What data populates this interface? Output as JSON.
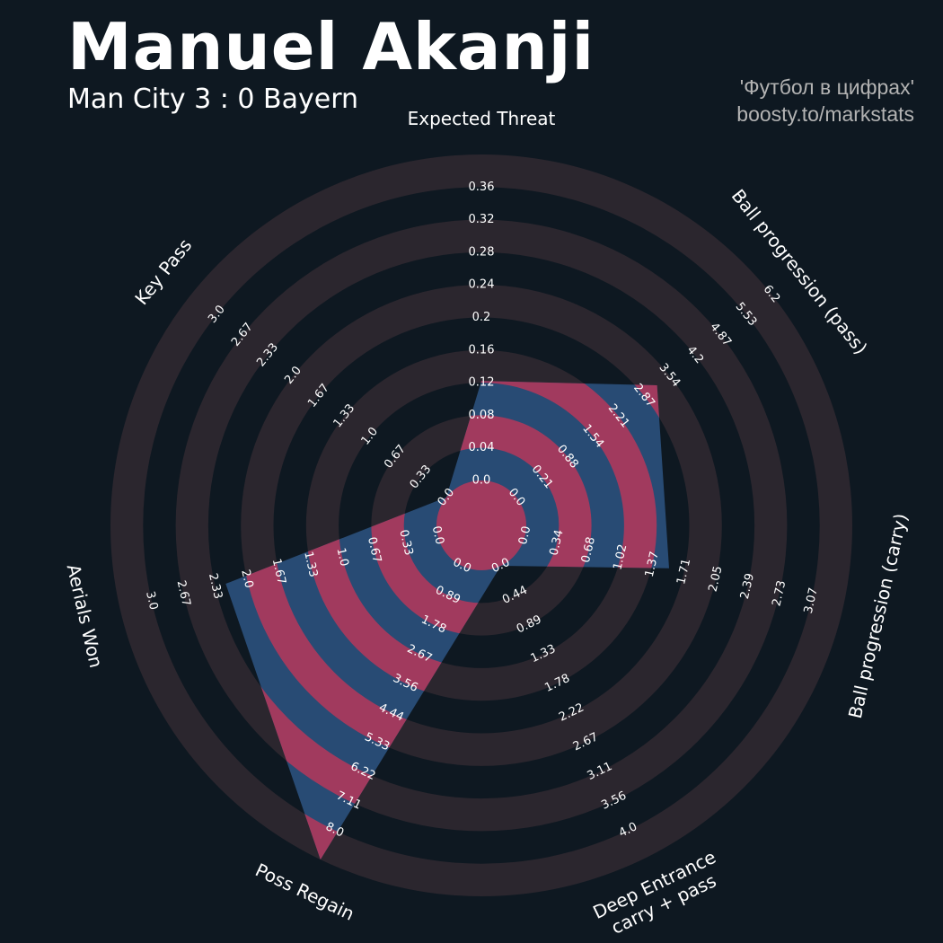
{
  "header": {
    "title": "Manuel Akanji",
    "subtitle": "Man City 3 : 0 Bayern"
  },
  "credit": {
    "line1": "'Футбол в цифрах'",
    "line2": "boosty.to/markstats"
  },
  "colors": {
    "background": "#0e1821",
    "ring_dark": "#2b262e",
    "ring_pink": "#a13a5e",
    "player_fill": "#284b74",
    "text": "#ffffff"
  },
  "chart_data": {
    "type": "radar",
    "title": "Manuel Akanji",
    "subtitle": "Man City 3 : 0 Bayern",
    "params": [
      {
        "label": "Expected Threat",
        "label2": "",
        "value": 0.11,
        "ticks": [
          "0.0",
          "0.04",
          "0.08",
          "0.12",
          "0.16",
          "0.2",
          "0.24",
          "0.28",
          "0.32",
          "0.36"
        ]
      },
      {
        "label": "Ball progression (pass)",
        "label2": "",
        "value": 3.42,
        "ticks": [
          "0.0",
          "0.21",
          "0.88",
          "1.54",
          "2.21",
          "2.87",
          "3.54",
          "4.2",
          "4.87",
          "5.53",
          "6.2"
        ]
      },
      {
        "label": "Ball progression (carry)",
        "label2": "",
        "value": 1.39,
        "ticks": [
          "0.0",
          "0.34",
          "0.68",
          "1.02",
          "1.37",
          "1.71",
          "2.05",
          "2.39",
          "2.73",
          "3.07"
        ]
      },
      {
        "label": "Deep Entrance",
        "label2": "carry + pass",
        "value": 0.0,
        "ticks": [
          "0.0",
          "0.44",
          "0.89",
          "1.33",
          "1.78",
          "2.22",
          "2.67",
          "3.11",
          "3.56",
          "4.0"
        ]
      },
      {
        "label": "Poss Regain",
        "label2": "",
        "value": 8.0,
        "ticks": [
          "0.0",
          "0.89",
          "1.78",
          "2.67",
          "3.56",
          "4.44",
          "5.33",
          "6.22",
          "7.11",
          "8.0"
        ]
      },
      {
        "label": "Aerials Won",
        "label2": "",
        "value": 2.0,
        "ticks": [
          "0.0",
          "0.33",
          "0.67",
          "1.0",
          "1.33",
          "1.67",
          "2.0",
          "2.33",
          "2.67",
          "3.0"
        ]
      },
      {
        "label": "Key Pass",
        "label2": "",
        "value": 0.0,
        "ticks": [
          "0.0",
          "0.33",
          "0.67",
          "1.0",
          "1.33",
          "1.67",
          "2.0",
          "2.33",
          "2.67",
          "3.0"
        ]
      }
    ]
  }
}
